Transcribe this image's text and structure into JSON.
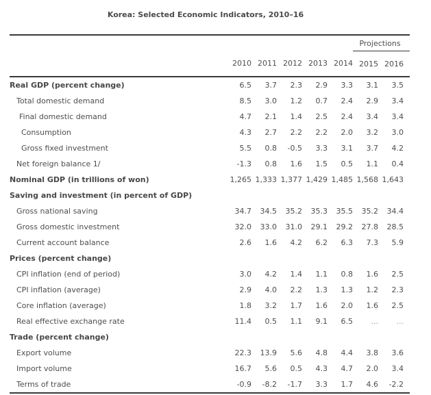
{
  "title": "Korea: Selected Economic Indicators, 2010–16",
  "projections_label": "Projections",
  "years": [
    "2010",
    "2011",
    "2012",
    "2013",
    "2014",
    "2015",
    "2016"
  ],
  "rows": [
    {
      "label": "Real GDP (percent change)",
      "style": "bold",
      "indent": 0,
      "values": [
        "6.5",
        "3.7",
        "2.3",
        "2.9",
        "3.3",
        "3.1",
        "3.5"
      ]
    },
    {
      "label": "Total domestic demand",
      "style": "normal",
      "indent": 1,
      "values": [
        "8.5",
        "3.0",
        "1.2",
        "0.7",
        "2.4",
        "2.9",
        "3.4"
      ]
    },
    {
      "label": "Final domestic demand",
      "style": "normal",
      "indent": 2,
      "values": [
        "4.7",
        "2.1",
        "1.4",
        "2.5",
        "2.4",
        "3.4",
        "3.4"
      ]
    },
    {
      "label": "Consumption",
      "style": "normal",
      "indent": 3,
      "values": [
        "4.3",
        "2.7",
        "2.2",
        "2.2",
        "2.0",
        "3.2",
        "3.0"
      ]
    },
    {
      "label": "Gross fixed investment",
      "style": "normal",
      "indent": 3,
      "values": [
        "5.5",
        "0.8",
        "-0.5",
        "3.3",
        "3.1",
        "3.7",
        "4.2"
      ]
    },
    {
      "label": "Net foreign balance 1/",
      "style": "normal",
      "indent": 1,
      "values": [
        "-1.3",
        "0.8",
        "1.6",
        "1.5",
        "0.5",
        "1.1",
        "0.4"
      ]
    },
    {
      "label": "Nominal GDP (in trillions of won)",
      "style": "bold",
      "indent": 0,
      "values": [
        "1,265",
        "1,333",
        "1,377",
        "1,429",
        "1,485",
        "1,568",
        "1,643"
      ]
    },
    {
      "label": "Saving and investment (in percent of GDP)",
      "style": "bold",
      "indent": 0,
      "values": [
        "",
        "",
        "",
        "",
        "",
        "",
        ""
      ]
    },
    {
      "label": "Gross national saving",
      "style": "normal",
      "indent": 1,
      "values": [
        "34.7",
        "34.5",
        "35.2",
        "35.3",
        "35.5",
        "35.2",
        "34.4"
      ]
    },
    {
      "label": "Gross domestic investment",
      "style": "normal",
      "indent": 1,
      "values": [
        "32.0",
        "33.0",
        "31.0",
        "29.1",
        "29.2",
        "27.8",
        "28.5"
      ]
    },
    {
      "label": "Current account balance",
      "style": "normal",
      "indent": 1,
      "values": [
        "2.6",
        "1.6",
        "4.2",
        "6.2",
        "6.3",
        "7.3",
        "5.9"
      ]
    },
    {
      "label": "Prices (percent change)",
      "style": "bold",
      "indent": 0,
      "values": [
        "",
        "",
        "",
        "",
        "",
        "",
        ""
      ]
    },
    {
      "label": "CPI inflation (end of period)",
      "style": "normal",
      "indent": 1,
      "values": [
        "3.0",
        "4.2",
        "1.4",
        "1.1",
        "0.8",
        "1.6",
        "2.5"
      ]
    },
    {
      "label": "CPI inflation (average)",
      "style": "normal",
      "indent": 1,
      "values": [
        "2.9",
        "4.0",
        "2.2",
        "1.3",
        "1.3",
        "1.2",
        "2.3"
      ]
    },
    {
      "label": "Core inflation (average)",
      "style": "normal",
      "indent": 1,
      "values": [
        "1.8",
        "3.2",
        "1.7",
        "1.6",
        "2.0",
        "1.6",
        "2.5"
      ]
    },
    {
      "label": "Real effective exchange rate",
      "style": "normal",
      "indent": 1,
      "values": [
        "11.4",
        "0.5",
        "1.1",
        "9.1",
        "6.5",
        "...",
        "..."
      ]
    },
    {
      "label": "Trade (percent change)",
      "style": "bold",
      "indent": 0,
      "values": [
        "",
        "",
        "",
        "",
        "",
        "",
        ""
      ]
    },
    {
      "label": "Export volume",
      "style": "normal",
      "indent": 1,
      "values": [
        "22.3",
        "13.9",
        "5.6",
        "4.8",
        "4.4",
        "3.8",
        "3.6"
      ]
    },
    {
      "label": "Import volume",
      "style": "normal",
      "indent": 1,
      "values": [
        "16.7",
        "5.6",
        "0.5",
        "4.3",
        "4.7",
        "2.0",
        "3.4"
      ]
    },
    {
      "label": "Terms of trade",
      "style": "normal",
      "indent": 1,
      "values": [
        "-0.9",
        "-8.2",
        "-1.7",
        "3.3",
        "1.7",
        "4.6",
        "-2.2"
      ]
    }
  ],
  "colors": {
    "text": "#4d4d4d",
    "bold_text": "#474747",
    "muted": "#9a9a9a",
    "rule": "#383838",
    "background": "#ffffff"
  }
}
